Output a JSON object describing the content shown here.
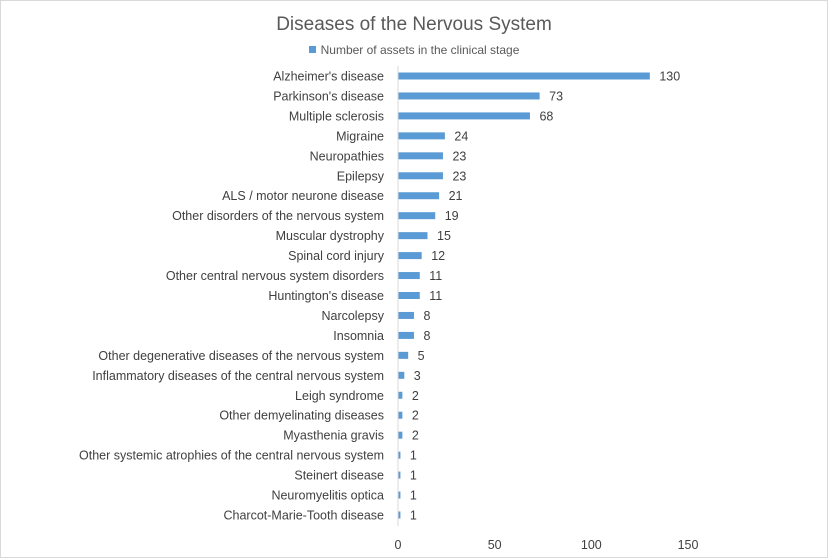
{
  "chart_data": {
    "type": "bar",
    "orientation": "horizontal",
    "title": "Diseases of the Nervous System",
    "legend": [
      "Number of assets in the clinical stage"
    ],
    "legend_position": "top",
    "xlim": [
      0,
      150
    ],
    "xticks": [
      0,
      50,
      100,
      150
    ],
    "grid": false,
    "color": "#5b9bd5",
    "categories": [
      "Alzheimer's disease",
      "Parkinson's disease",
      "Multiple sclerosis",
      "Migraine",
      "Neuropathies",
      "Epilepsy",
      "ALS / motor neurone disease",
      "Other disorders of the nervous system",
      "Muscular dystrophy",
      "Spinal cord injury",
      "Other central nervous system disorders",
      "Huntington's disease",
      "Narcolepsy",
      "Insomnia",
      "Other degenerative diseases of the nervous system",
      "Inflammatory diseases of the central nervous system",
      "Leigh syndrome",
      "Other demyelinating diseases",
      "Myasthenia gravis",
      "Other systemic atrophies of the central nervous system",
      "Steinert disease",
      "Neuromyelitis optica",
      "Charcot-Marie-Tooth disease"
    ],
    "series": [
      {
        "name": "Number of assets in the clinical stage",
        "values": [
          130,
          73,
          68,
          24,
          23,
          23,
          21,
          19,
          15,
          12,
          11,
          11,
          8,
          8,
          5,
          3,
          2,
          2,
          2,
          1,
          1,
          1,
          1
        ]
      }
    ]
  }
}
